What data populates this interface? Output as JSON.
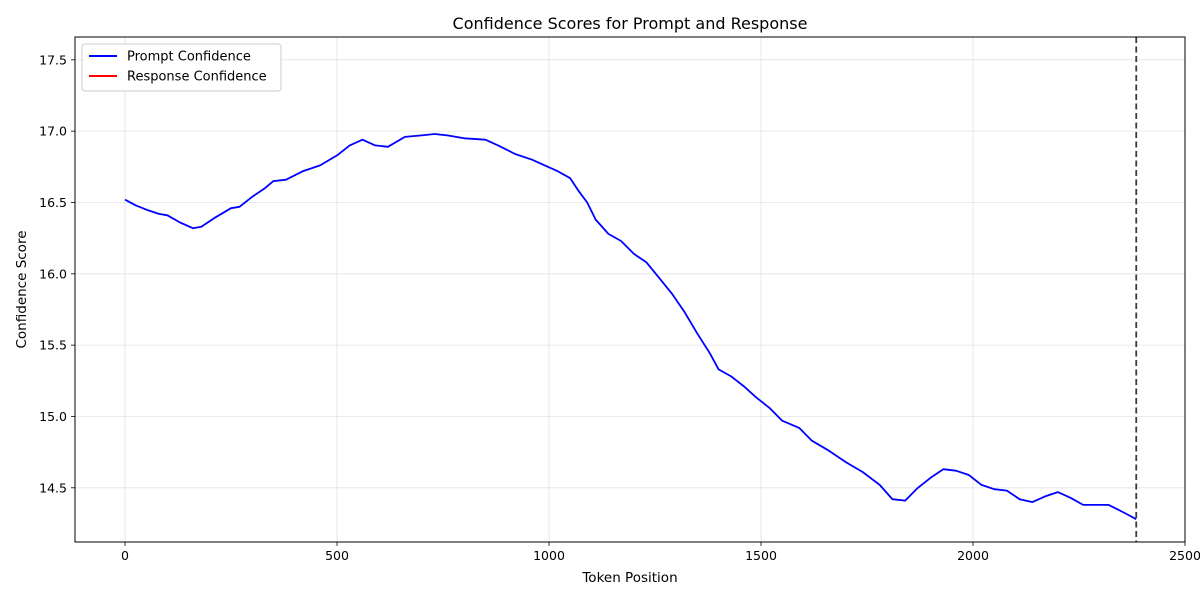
{
  "chart_data": {
    "type": "line",
    "title": "Confidence Scores for Prompt and Response",
    "xlabel": "Token Position",
    "ylabel": "Confidence Score",
    "xlim": [
      -118,
      2500
    ],
    "ylim": [
      14.12,
      17.66
    ],
    "x_ticks": [
      0,
      500,
      1000,
      1500,
      2000,
      2500
    ],
    "x_tick_labels": [
      "0",
      "500",
      "1000",
      "1500",
      "2000",
      "2500"
    ],
    "y_ticks": [
      14.5,
      15.0,
      15.5,
      16.0,
      16.5,
      17.0,
      17.5
    ],
    "y_tick_labels": [
      "14.5",
      "15.0",
      "15.5",
      "16.0",
      "16.5",
      "17.0",
      "17.5"
    ],
    "grid": true,
    "legend_position": "top-left",
    "divider_x": 2385,
    "series": [
      {
        "name": "Prompt Confidence",
        "color": "#0000ff",
        "points": [
          [
            0,
            16.52
          ],
          [
            25,
            16.48
          ],
          [
            50,
            16.45
          ],
          [
            80,
            16.42
          ],
          [
            100,
            16.41
          ],
          [
            130,
            16.36
          ],
          [
            160,
            16.32
          ],
          [
            180,
            16.33
          ],
          [
            210,
            16.39
          ],
          [
            250,
            16.46
          ],
          [
            270,
            16.47
          ],
          [
            300,
            16.54
          ],
          [
            330,
            16.6
          ],
          [
            350,
            16.65
          ],
          [
            380,
            16.66
          ],
          [
            420,
            16.72
          ],
          [
            460,
            16.76
          ],
          [
            500,
            16.83
          ],
          [
            530,
            16.9
          ],
          [
            560,
            16.94
          ],
          [
            590,
            16.9
          ],
          [
            620,
            16.89
          ],
          [
            660,
            16.96
          ],
          [
            700,
            16.97
          ],
          [
            730,
            16.98
          ],
          [
            760,
            16.97
          ],
          [
            800,
            16.95
          ],
          [
            850,
            16.94
          ],
          [
            880,
            16.9
          ],
          [
            920,
            16.84
          ],
          [
            960,
            16.8
          ],
          [
            990,
            16.76
          ],
          [
            1020,
            16.72
          ],
          [
            1050,
            16.67
          ],
          [
            1070,
            16.58
          ],
          [
            1090,
            16.5
          ],
          [
            1110,
            16.38
          ],
          [
            1140,
            16.28
          ],
          [
            1170,
            16.23
          ],
          [
            1200,
            16.14
          ],
          [
            1230,
            16.08
          ],
          [
            1260,
            15.97
          ],
          [
            1290,
            15.86
          ],
          [
            1320,
            15.73
          ],
          [
            1350,
            15.58
          ],
          [
            1380,
            15.44
          ],
          [
            1400,
            15.33
          ],
          [
            1430,
            15.28
          ],
          [
            1460,
            15.21
          ],
          [
            1490,
            15.13
          ],
          [
            1520,
            15.06
          ],
          [
            1550,
            14.97
          ],
          [
            1590,
            14.92
          ],
          [
            1620,
            14.83
          ],
          [
            1660,
            14.76
          ],
          [
            1700,
            14.68
          ],
          [
            1740,
            14.61
          ],
          [
            1780,
            14.52
          ],
          [
            1810,
            14.42
          ],
          [
            1840,
            14.41
          ],
          [
            1870,
            14.5
          ],
          [
            1900,
            14.57
          ],
          [
            1930,
            14.63
          ],
          [
            1960,
            14.62
          ],
          [
            1990,
            14.59
          ],
          [
            2020,
            14.52
          ],
          [
            2050,
            14.49
          ],
          [
            2080,
            14.48
          ],
          [
            2110,
            14.42
          ],
          [
            2140,
            14.4
          ],
          [
            2170,
            14.44
          ],
          [
            2200,
            14.47
          ],
          [
            2230,
            14.43
          ],
          [
            2260,
            14.38
          ],
          [
            2290,
            14.38
          ],
          [
            2320,
            14.38
          ],
          [
            2340,
            14.35
          ],
          [
            2360,
            14.32
          ],
          [
            2385,
            14.28
          ]
        ]
      },
      {
        "name": "Response Confidence",
        "color": "#ff0000",
        "points": []
      }
    ]
  }
}
